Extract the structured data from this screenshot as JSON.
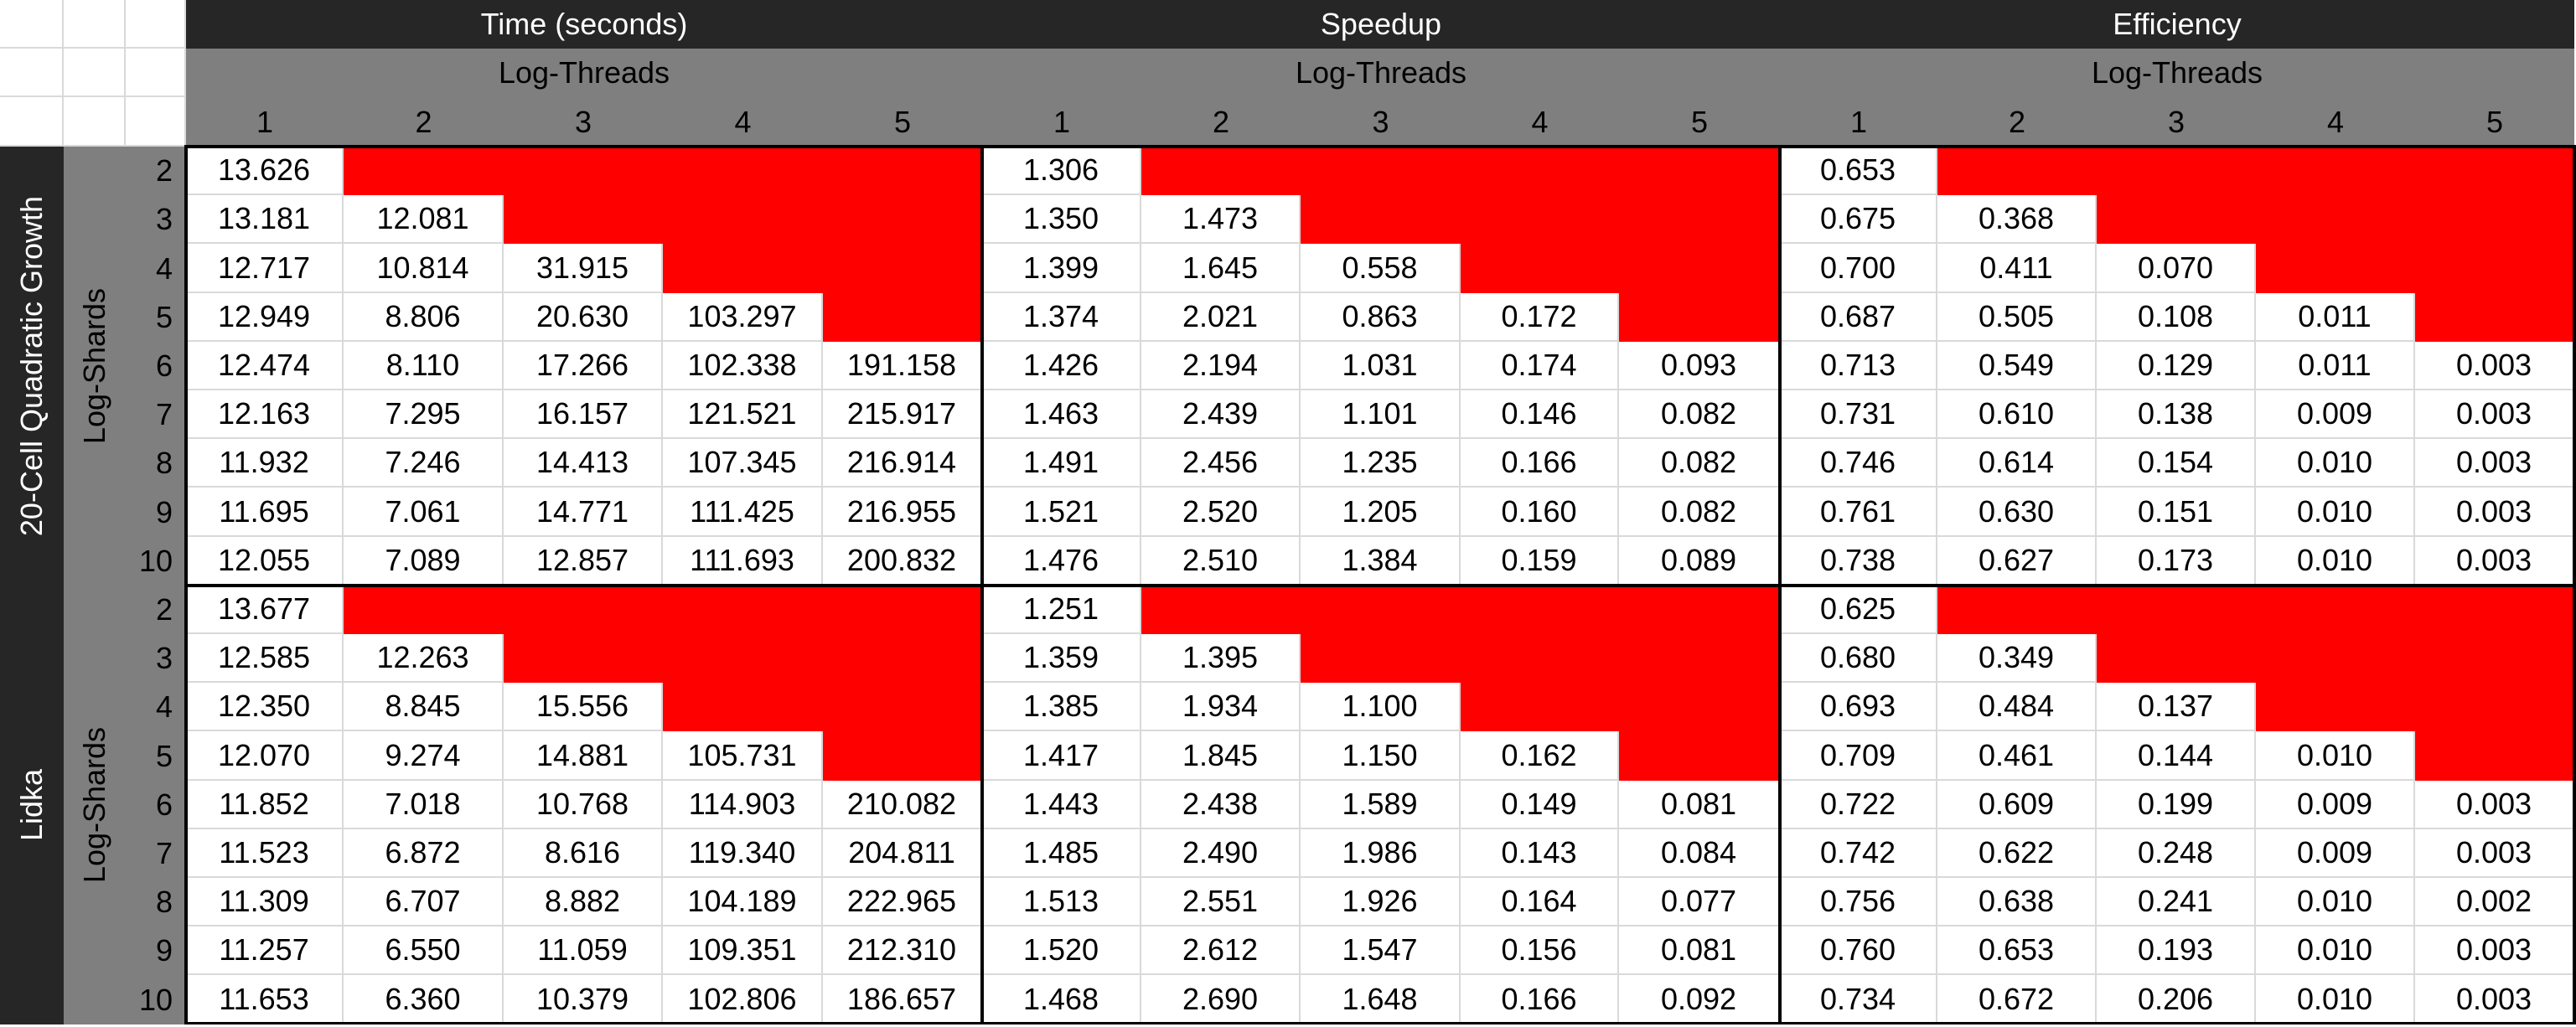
{
  "metrics": [
    {
      "label": "Time (seconds)",
      "sublabel": "Log-Threads"
    },
    {
      "label": "Speedup",
      "sublabel": "Log-Threads"
    },
    {
      "label": "Efficiency",
      "sublabel": "Log-Threads"
    }
  ],
  "thread_labels": [
    "1",
    "2",
    "3",
    "4",
    "5"
  ],
  "shard_labels": [
    "2",
    "3",
    "4",
    "5",
    "6",
    "7",
    "8",
    "9",
    "10"
  ],
  "row_axis_label": "Log-Shards",
  "datasets": [
    {
      "name": "20-Cell Quadratic Growth",
      "values": [
        [
          "13.626",
          null,
          null,
          null,
          null,
          "1.306",
          null,
          null,
          null,
          null,
          "0.653",
          null,
          null,
          null,
          null
        ],
        [
          "13.181",
          "12.081",
          null,
          null,
          null,
          "1.350",
          "1.473",
          null,
          null,
          null,
          "0.675",
          "0.368",
          null,
          null,
          null
        ],
        [
          "12.717",
          "10.814",
          "31.915",
          null,
          null,
          "1.399",
          "1.645",
          "0.558",
          null,
          null,
          "0.700",
          "0.411",
          "0.070",
          null,
          null
        ],
        [
          "12.949",
          "8.806",
          "20.630",
          "103.297",
          null,
          "1.374",
          "2.021",
          "0.863",
          "0.172",
          null,
          "0.687",
          "0.505",
          "0.108",
          "0.011",
          null
        ],
        [
          "12.474",
          "8.110",
          "17.266",
          "102.338",
          "191.158",
          "1.426",
          "2.194",
          "1.031",
          "0.174",
          "0.093",
          "0.713",
          "0.549",
          "0.129",
          "0.011",
          "0.003"
        ],
        [
          "12.163",
          "7.295",
          "16.157",
          "121.521",
          "215.917",
          "1.463",
          "2.439",
          "1.101",
          "0.146",
          "0.082",
          "0.731",
          "0.610",
          "0.138",
          "0.009",
          "0.003"
        ],
        [
          "11.932",
          "7.246",
          "14.413",
          "107.345",
          "216.914",
          "1.491",
          "2.456",
          "1.235",
          "0.166",
          "0.082",
          "0.746",
          "0.614",
          "0.154",
          "0.010",
          "0.003"
        ],
        [
          "11.695",
          "7.061",
          "14.771",
          "111.425",
          "216.955",
          "1.521",
          "2.520",
          "1.205",
          "0.160",
          "0.082",
          "0.761",
          "0.630",
          "0.151",
          "0.010",
          "0.003"
        ],
        [
          "12.055",
          "7.089",
          "12.857",
          "111.693",
          "200.832",
          "1.476",
          "2.510",
          "1.384",
          "0.159",
          "0.089",
          "0.738",
          "0.627",
          "0.173",
          "0.010",
          "0.003"
        ]
      ]
    },
    {
      "name": "Lidka",
      "values": [
        [
          "13.677",
          null,
          null,
          null,
          null,
          "1.251",
          null,
          null,
          null,
          null,
          "0.625",
          null,
          null,
          null,
          null
        ],
        [
          "12.585",
          "12.263",
          null,
          null,
          null,
          "1.359",
          "1.395",
          null,
          null,
          null,
          "0.680",
          "0.349",
          null,
          null,
          null
        ],
        [
          "12.350",
          "8.845",
          "15.556",
          null,
          null,
          "1.385",
          "1.934",
          "1.100",
          null,
          null,
          "0.693",
          "0.484",
          "0.137",
          null,
          null
        ],
        [
          "12.070",
          "9.274",
          "14.881",
          "105.731",
          null,
          "1.417",
          "1.845",
          "1.150",
          "0.162",
          null,
          "0.709",
          "0.461",
          "0.144",
          "0.010",
          null
        ],
        [
          "11.852",
          "7.018",
          "10.768",
          "114.903",
          "210.082",
          "1.443",
          "2.438",
          "1.589",
          "0.149",
          "0.081",
          "0.722",
          "0.609",
          "0.199",
          "0.009",
          "0.003"
        ],
        [
          "11.523",
          "6.872",
          "8.616",
          "119.340",
          "204.811",
          "1.485",
          "2.490",
          "1.986",
          "0.143",
          "0.084",
          "0.742",
          "0.622",
          "0.248",
          "0.009",
          "0.003"
        ],
        [
          "11.309",
          "6.707",
          "8.882",
          "104.189",
          "222.965",
          "1.513",
          "2.551",
          "1.926",
          "0.164",
          "0.077",
          "0.756",
          "0.638",
          "0.241",
          "0.010",
          "0.002"
        ],
        [
          "11.257",
          "6.550",
          "11.059",
          "109.351",
          "212.310",
          "1.520",
          "2.612",
          "1.547",
          "0.156",
          "0.081",
          "0.760",
          "0.653",
          "0.193",
          "0.010",
          "0.003"
        ],
        [
          "11.653",
          "6.360",
          "10.379",
          "102.806",
          "186.657",
          "1.468",
          "2.690",
          "1.648",
          "0.166",
          "0.092",
          "0.734",
          "0.672",
          "0.206",
          "0.010",
          "0.003"
        ]
      ]
    }
  ],
  "colors": {
    "dark_header": "#262626",
    "gray_header": "#7f7f7f",
    "empty_cell": "#ff0000",
    "data_cell": "#ffffff"
  }
}
